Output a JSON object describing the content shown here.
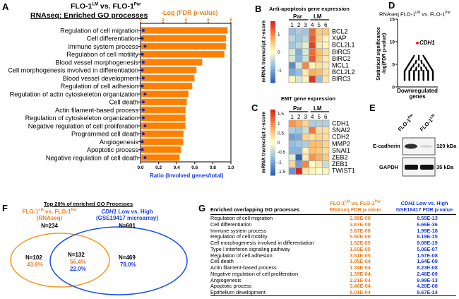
{
  "panels": {
    "A": "A",
    "B": "B",
    "C": "C",
    "D": "D",
    "E": "E",
    "F": "F",
    "G": "G"
  },
  "colors": {
    "orange": "#f07f1c",
    "blue": "#1a3ce6",
    "red": "#e8201c"
  },
  "panelA": {
    "title_line1_main": "FLO-1",
    "title_line1_sup1": "LM",
    "title_line1_mid": " vs. FLO-1",
    "title_line1_sup2": "Par",
    "title_line2": "RNAseq: Enriched GO processes"
  },
  "panelB": {
    "title": "Anti-apoptosis gene expression",
    "group_par": "Par",
    "group_lm": "LM",
    "colorbar_label": "mRNA transcript z-score"
  },
  "panelC": {
    "title": "EMT gene expression",
    "group_par": "Par",
    "group_lm": "LM",
    "colorbar_label": "mRNA transcript z-score"
  },
  "panelD": {
    "title_main": "RNAseq FLO-1",
    "title_sup1": "LM",
    "title_mid": " vs. FLO-1",
    "title_sup2": "Par",
    "ylabel_line1": "Statistical significance",
    "ylabel_line2": "-log(FDR p-value)",
    "xlabel_line1": "Downregulated",
    "xlabel_line2": "genes",
    "highlight_label": "CDH1"
  },
  "panelE": {
    "lane1": "FLO-1",
    "lane1_sup": "Par",
    "lane2": "FLO-1",
    "lane2_sup": "LM",
    "band1": "E-cadherin",
    "band1_size": "120 kDa",
    "band2": "GAPDH",
    "band2_size": "35 kDa",
    "ecad_intensity": [
      1.0,
      0.15
    ]
  },
  "panelF": {
    "title": "Top 20% of enriched GO Processes",
    "set1_line1_main": "FLO-1",
    "set1_sup1": "LM",
    "set1_mid": " vs. FLO-1",
    "set1_sup2": "Par",
    "set1_line2": "(RNAseq)",
    "set1_n": "N=234",
    "set2_line1_italic": "CDH1",
    "set2_line1_rest": " Low vs. High",
    "set2_line2": "(GSE19417 microarray)",
    "set2_n": "N=601",
    "left_n": "N=102",
    "left_pct": "43.6%",
    "mid_n": "N=132",
    "mid_pct1": "56.4%",
    "mid_pct2": "22.0%",
    "right_n": "N=469",
    "right_pct": "78.0%"
  },
  "panelG": {
    "col1": "Enriched overlapping GO processes",
    "col2_line1_main": "FLO-1",
    "col2_sup1": "LM",
    "col2_mid": " vs. FLO-1",
    "col2_sup2": "Par",
    "col2_line2": "RNAseq FDR p-value",
    "col3_line1_italic": "CDH1",
    "col3_line1_rest": " Low vs. High",
    "col3_line2": "GSE19417 FDR p-value",
    "rows": [
      {
        "process": "Regulation of cell migration",
        "rnaseq": "2.88E-08",
        "gse": "8.55E-13"
      },
      {
        "process": "Cell differentiation",
        "rnaseq": "3.87E-08",
        "gse": "6.66E-36"
      },
      {
        "process": "Immune system process",
        "rnaseq": "3.87E-08",
        "gse": "1.99E-18"
      },
      {
        "process": "Regulation of cell motility",
        "rnaseq": "5.50E-08",
        "gse": "8.19E-15"
      },
      {
        "process": "Cell morphogenesis involved in differentiation",
        "rnaseq": "1.52E-05",
        "gse": "9.08E-19"
      },
      {
        "process": "Type I interferon signaling pathway",
        "rnaseq": "1.60E-05",
        "gse": "5.06E-07"
      },
      {
        "process": "Regulation of cell adhesion",
        "rnaseq": "3.51E-05",
        "gse": "1.57E-08"
      },
      {
        "process": "Cell death",
        "rnaseq": "1.05E-04",
        "gse": "1.64E-09"
      },
      {
        "process": "Actin filament-based process",
        "rnaseq": "1.34E-04",
        "gse": "8.23E-08"
      },
      {
        "process": "Negative regulation of cell proliferation",
        "rnaseq": "1.39E-04",
        "gse": "2.46E-09"
      },
      {
        "process": "Angiogenesis",
        "rnaseq": "2.21E-04",
        "gse": "9.99E-13"
      },
      {
        "process": "Apoptotic process",
        "rnaseq": "3.46E-04",
        "gse": "4.20E-08"
      },
      {
        "process": "Epithelium development",
        "rnaseq": "8.01E-04",
        "gse": "8.67E-14"
      }
    ]
  },
  "chart_data": [
    {
      "type": "bar",
      "panel": "A",
      "orientation": "horizontal",
      "categories": [
        "Regulation of cell migration",
        "Cell differentiation",
        "Immune system process",
        "Regulation of cell motility",
        "Blood vessel morphogenesis",
        "Cell morphogenesis involved in differentiation",
        "Blood vessel development",
        "Regulation of cell adhesion",
        "Regulation of actin cytoskeleton organization",
        "Cell death",
        "Actin filament-based process",
        "Regulation of cytoskeleton organization",
        "Negative regulation of cell proliferation",
        "Programmed cell death",
        "Angiogenesis",
        "Apoptotic process",
        "Negative regulation of cell death"
      ],
      "series": [
        {
          "name": "-Log (FDR p-value)",
          "axis": "top",
          "values": [
            7.54,
            7.41,
            7.41,
            7.26,
            5.33,
            4.82,
            4.65,
            4.45,
            4.12,
            3.98,
            3.87,
            3.86,
            3.86,
            3.69,
            3.66,
            3.46,
            3.34
          ]
        },
        {
          "name": "Ratio (Involved genes/total)",
          "axis": "bottom",
          "marker": "dot",
          "values": [
            0.03,
            0.02,
            0.05,
            0.02,
            0.03,
            0.02,
            0.03,
            0.02,
            0.05,
            0.03,
            0.03,
            0.03,
            0.05,
            0.03,
            0.02,
            0.02,
            0.05
          ]
        }
      ],
      "top_axis": {
        "label": "-Log (FDR p-value)",
        "range": [
          0,
          8
        ],
        "ticks": [
          "0",
          "2",
          "4",
          "6",
          "8"
        ]
      },
      "bottom_axis": {
        "label": "Ratio (Involved genes/total)",
        "range": [
          0,
          1
        ],
        "ticks": [
          "0.0",
          "0.2",
          "0.4",
          "0.6",
          "0.8",
          "1.0"
        ]
      },
      "grid": false
    },
    {
      "type": "heatmap",
      "panel": "B",
      "columns": [
        "1",
        "2",
        "3",
        "4",
        "5",
        "6"
      ],
      "rows": [
        "BCL2",
        "XIAP",
        "BCL2L1",
        "BIRC5",
        "BIRC2",
        "MCL1",
        "BCL2L2",
        "BIRC3"
      ],
      "values": [
        [
          -0.8,
          -0.6,
          -0.7,
          1.2,
          0.5,
          0.5
        ],
        [
          -0.5,
          -0.7,
          -0.5,
          1.3,
          0.4,
          0.1
        ],
        [
          -0.7,
          -0.5,
          -0.2,
          1.5,
          0.2,
          0.1
        ],
        [
          -0.3,
          -1.0,
          -0.3,
          1.2,
          0.6,
          0.3
        ],
        [
          -0.3,
          -0.9,
          -0.4,
          1.3,
          0.5,
          0.2
        ],
        [
          -1.3,
          -0.3,
          1.0,
          0.1,
          0.3,
          0.2
        ],
        [
          -1.0,
          -0.8,
          0.2,
          0.7,
          0.6,
          0.3
        ],
        [
          0.1,
          -0.3,
          0.1,
          1.6,
          -0.8,
          0.2
        ]
      ],
      "colorbar_ticks": [
        "1",
        "0",
        "-1"
      ],
      "range": [
        -1.7,
        1.7
      ]
    },
    {
      "type": "heatmap",
      "panel": "C",
      "columns": [
        "1",
        "2",
        "3",
        "4",
        "5",
        "6"
      ],
      "rows": [
        "CDH1",
        "SNAI2",
        "CDH2",
        "MMP2",
        "SNAI1",
        "ZEB2",
        "ZEB1",
        "TWIST1"
      ],
      "values": [
        [
          0.9,
          0.7,
          0.4,
          -0.6,
          -0.6,
          -0.6
        ],
        [
          -0.6,
          -0.7,
          -0.4,
          1.1,
          0.3,
          0.3
        ],
        [
          -1.1,
          -1.0,
          0.4,
          0.3,
          0.4,
          0.3
        ],
        [
          -0.8,
          -0.7,
          -0.6,
          0.6,
          0.6,
          0.4
        ],
        [
          -0.9,
          -0.9,
          0.1,
          0.6,
          0.5,
          0.3
        ],
        [
          -0.2,
          -1.7,
          0.2,
          0.9,
          0.7,
          0.5
        ],
        [
          0.4,
          -1.1,
          1.0,
          0.0,
          0.2,
          -0.4
        ],
        [
          -1.2,
          1.7,
          0.2,
          0.1,
          0.0,
          0.1
        ]
      ],
      "colorbar_ticks": [
        "1.5",
        "1",
        "0.5",
        "0",
        "-0.5",
        "-1",
        "-1.5"
      ],
      "range": [
        -1.7,
        1.7
      ]
    },
    {
      "type": "scatter",
      "panel": "D",
      "category": "Downregulated genes",
      "ylim": [
        0,
        15
      ],
      "yticks": [
        "0",
        "5",
        "10",
        "15"
      ],
      "highlight": {
        "label": "CDH1",
        "y": 9.7
      },
      "values": [
        6.9,
        6.6,
        6.5,
        6.4,
        6.3,
        6.3,
        6.2,
        6.2,
        6.1,
        6.0,
        5.8,
        5.6,
        5.5,
        5.4,
        5.2,
        5.0,
        4.8,
        4.6,
        4.5,
        4.3,
        4.1,
        4.0,
        3.9,
        3.8,
        3.7,
        3.6,
        3.5,
        3.4,
        3.3,
        3.2,
        3.1,
        3.0,
        2.9,
        2.8,
        2.7,
        2.6,
        2.5,
        2.4,
        2.3,
        2.2,
        2.1,
        2.0,
        1.9,
        1.8,
        1.7,
        1.6,
        1.5
      ]
    },
    {
      "type": "venn",
      "panel": "F",
      "sets": [
        {
          "label": "FLO-1LM vs. FLO-1Par (RNAseq)",
          "n": 234
        },
        {
          "label": "CDH1 Low vs. High (GSE19417 microarray)",
          "n": 601
        }
      ],
      "only1": 102,
      "overlap": 132,
      "only2": 469
    }
  ]
}
